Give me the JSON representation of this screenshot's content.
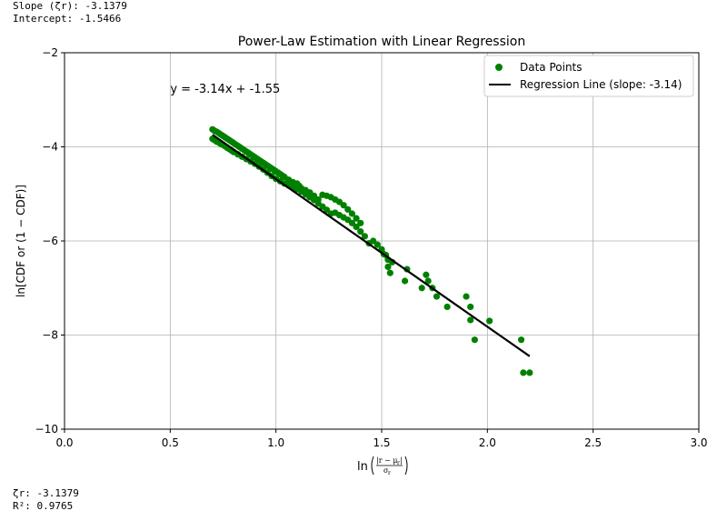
{
  "console_top": {
    "slope_line": "Slope (ζr): -3.1379",
    "intercept_line": "Intercept: -1.5466"
  },
  "console_bottom": {
    "zeta_line": "ζr: -3.1379",
    "r2_line": "R²: 0.9765"
  },
  "colors": {
    "points": "#008000",
    "regression": "#000000",
    "grid": "#b0b0b0"
  },
  "chart_data": {
    "type": "scatter",
    "title": "Power-Law Estimation with Linear Regression",
    "xlabel": "ln((|r − μr|)/σr)",
    "ylabel": "ln[CDF or (1 − CDF)]",
    "xlim": [
      0.0,
      3.0
    ],
    "ylim": [
      -10,
      -2
    ],
    "xticks": [
      0.0,
      0.5,
      1.0,
      1.5,
      2.0,
      2.5,
      3.0
    ],
    "xtick_labels": [
      "0.0",
      "0.5",
      "1.0",
      "1.5",
      "2.0",
      "2.5",
      "3.0"
    ],
    "yticks": [
      -10,
      -8,
      -6,
      -4,
      -2
    ],
    "ytick_labels": [
      "−10",
      "−8",
      "−6",
      "−4",
      "−2"
    ],
    "grid": true,
    "legend_position": "top-right",
    "annotation": "y = -3.14x + -1.55",
    "annotation_at": [
      0.5,
      -2.85
    ],
    "series": [
      {
        "name": "Data Points",
        "kind": "scatter",
        "points": [
          [
            0.7,
            -3.63
          ],
          [
            0.71,
            -3.66
          ],
          [
            0.72,
            -3.68
          ],
          [
            0.73,
            -3.71
          ],
          [
            0.74,
            -3.74
          ],
          [
            0.75,
            -3.77
          ],
          [
            0.76,
            -3.8
          ],
          [
            0.77,
            -3.83
          ],
          [
            0.78,
            -3.86
          ],
          [
            0.79,
            -3.89
          ],
          [
            0.8,
            -3.92
          ],
          [
            0.81,
            -3.95
          ],
          [
            0.82,
            -3.98
          ],
          [
            0.83,
            -4.01
          ],
          [
            0.84,
            -4.04
          ],
          [
            0.85,
            -4.07
          ],
          [
            0.86,
            -4.1
          ],
          [
            0.87,
            -4.13
          ],
          [
            0.88,
            -4.16
          ],
          [
            0.89,
            -4.19
          ],
          [
            0.9,
            -4.22
          ],
          [
            0.91,
            -4.25
          ],
          [
            0.92,
            -4.28
          ],
          [
            0.93,
            -4.31
          ],
          [
            0.94,
            -4.34
          ],
          [
            0.95,
            -4.37
          ],
          [
            0.96,
            -4.4
          ],
          [
            0.97,
            -4.43
          ],
          [
            0.98,
            -4.46
          ],
          [
            0.99,
            -4.49
          ],
          [
            1.0,
            -4.52
          ],
          [
            1.01,
            -4.55
          ],
          [
            1.02,
            -4.58
          ],
          [
            1.03,
            -4.61
          ],
          [
            1.04,
            -4.64
          ],
          [
            0.7,
            -3.83
          ],
          [
            0.71,
            -3.86
          ],
          [
            0.72,
            -3.89
          ],
          [
            0.73,
            -3.91
          ],
          [
            0.74,
            -3.94
          ],
          [
            0.75,
            -3.96
          ],
          [
            0.76,
            -3.99
          ],
          [
            0.77,
            -4.02
          ],
          [
            0.78,
            -4.05
          ],
          [
            0.79,
            -4.08
          ],
          [
            0.8,
            -4.11
          ],
          [
            0.82,
            -4.16
          ],
          [
            0.84,
            -4.21
          ],
          [
            0.86,
            -4.26
          ],
          [
            0.88,
            -4.31
          ],
          [
            0.9,
            -4.36
          ],
          [
            0.92,
            -4.42
          ],
          [
            0.94,
            -4.48
          ],
          [
            0.96,
            -4.55
          ],
          [
            0.98,
            -4.62
          ],
          [
            1.0,
            -4.68
          ],
          [
            1.02,
            -4.73
          ],
          [
            1.04,
            -4.78
          ],
          [
            1.06,
            -4.82
          ],
          [
            1.08,
            -4.86
          ],
          [
            1.1,
            -4.9
          ],
          [
            1.12,
            -4.95
          ],
          [
            1.14,
            -5.01
          ],
          [
            1.16,
            -5.07
          ],
          [
            1.18,
            -5.13
          ],
          [
            1.2,
            -5.2
          ],
          [
            1.22,
            -5.27
          ],
          [
            1.24,
            -5.34
          ],
          [
            1.26,
            -5.42
          ],
          [
            1.06,
            -4.7
          ],
          [
            1.08,
            -4.75
          ],
          [
            1.1,
            -4.78
          ],
          [
            1.11,
            -4.83
          ],
          [
            1.12,
            -4.88
          ],
          [
            1.14,
            -4.92
          ],
          [
            1.16,
            -4.97
          ],
          [
            1.18,
            -5.04
          ],
          [
            1.2,
            -5.12
          ],
          [
            1.22,
            -5.02
          ],
          [
            1.24,
            -5.04
          ],
          [
            1.26,
            -5.07
          ],
          [
            1.28,
            -5.12
          ],
          [
            1.3,
            -5.17
          ],
          [
            1.32,
            -5.24
          ],
          [
            1.34,
            -5.33
          ],
          [
            1.36,
            -5.42
          ],
          [
            1.38,
            -5.52
          ],
          [
            1.4,
            -5.62
          ],
          [
            1.28,
            -5.4
          ],
          [
            1.3,
            -5.45
          ],
          [
            1.32,
            -5.5
          ],
          [
            1.34,
            -5.55
          ],
          [
            1.36,
            -5.62
          ],
          [
            1.38,
            -5.7
          ],
          [
            1.4,
            -5.8
          ],
          [
            1.42,
            -5.9
          ],
          [
            1.44,
            -6.05
          ],
          [
            1.46,
            -6.0
          ],
          [
            1.48,
            -6.08
          ],
          [
            1.5,
            -6.18
          ],
          [
            1.51,
            -6.28
          ],
          [
            1.52,
            -6.3
          ],
          [
            1.53,
            -6.4
          ],
          [
            1.53,
            -6.55
          ],
          [
            1.54,
            -6.68
          ],
          [
            1.55,
            -6.45
          ],
          [
            1.61,
            -6.85
          ],
          [
            1.62,
            -6.6
          ],
          [
            1.69,
            -7.0
          ],
          [
            1.71,
            -6.72
          ],
          [
            1.72,
            -6.85
          ],
          [
            1.74,
            -7.0
          ],
          [
            1.76,
            -7.18
          ],
          [
            1.81,
            -7.4
          ],
          [
            1.9,
            -7.18
          ],
          [
            1.92,
            -7.4
          ],
          [
            1.92,
            -7.68
          ],
          [
            1.94,
            -8.1
          ],
          [
            2.01,
            -7.7
          ],
          [
            2.16,
            -8.1
          ],
          [
            2.17,
            -8.8
          ],
          [
            2.2,
            -8.8
          ]
        ]
      },
      {
        "name": "Regression Line (slope: -3.14)",
        "kind": "line",
        "slope": -3.1379,
        "intercept": -1.5466,
        "x_range": [
          0.7,
          2.2
        ]
      }
    ]
  }
}
